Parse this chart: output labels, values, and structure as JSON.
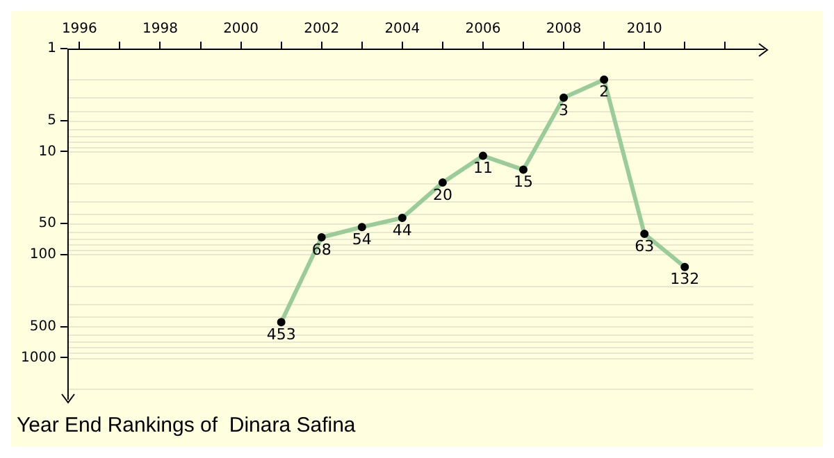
{
  "chart_data": {
    "type": "line",
    "title": "Year End Rankings of  Dinara Safina",
    "x": [
      2001,
      2002,
      2003,
      2004,
      2005,
      2006,
      2007,
      2008,
      2009,
      2010,
      2011
    ],
    "series": [
      {
        "color": "#99cc99",
        "values": [
          453,
          68,
          54,
          44,
          20,
          11,
          15,
          3,
          2,
          63,
          132
        ]
      }
    ],
    "xlim": [
      1995.7,
      2012.7
    ],
    "xticks": [
      1996,
      {
        "value": 1997,
        "label": null
      },
      1998,
      {
        "value": 1999,
        "label": null
      },
      2000,
      {
        "value": 2001,
        "label": null
      },
      2002,
      {
        "value": 2003,
        "label": null
      },
      2004,
      {
        "value": 2005,
        "label": null
      },
      2006,
      {
        "value": 2007,
        "label": null
      },
      2008,
      {
        "value": 2009,
        "label": null
      },
      2010,
      {
        "value": 2011,
        "label": null
      },
      {
        "value": 2012,
        "label": null
      }
    ],
    "ylim": [
      2000,
      1
    ],
    "yticks": [
      1,
      5,
      10,
      50,
      100,
      500,
      1000
    ],
    "log": "y",
    "grid": "y",
    "marker": "circle",
    "data_labels": true,
    "legend": false
  }
}
